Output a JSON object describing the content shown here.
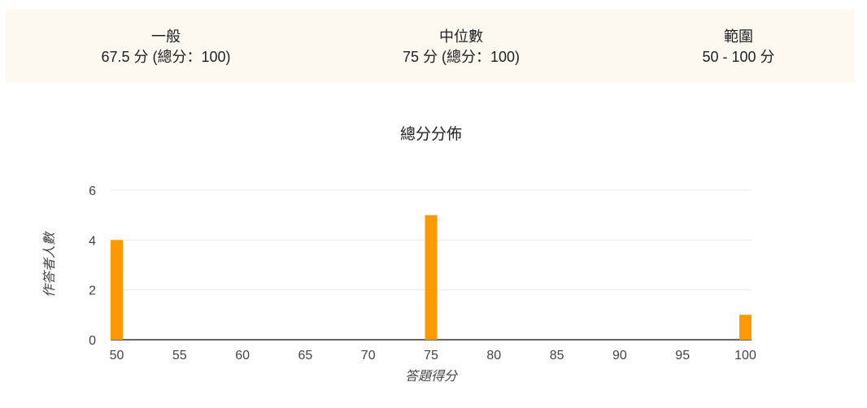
{
  "stats": {
    "average": {
      "label": "一般",
      "value": "67.5 分 (總分：100)"
    },
    "median": {
      "label": "中位數",
      "value": "75 分 (總分：100)"
    },
    "range": {
      "label": "範圍",
      "value": "50 - 100 分"
    }
  },
  "colors": {
    "bar": "#ff9900",
    "gridline": "#ebebeb",
    "baseline": "#333333",
    "panel_background": "#fef9f0"
  },
  "chart_data": {
    "type": "bar",
    "title": "總分分佈",
    "xlabel": "答題得分",
    "ylabel": "作答者人數",
    "x_ticks": [
      50,
      55,
      60,
      65,
      70,
      75,
      80,
      85,
      90,
      95,
      100
    ],
    "y_ticks": [
      0,
      2,
      4,
      6
    ],
    "xlim": [
      50,
      100
    ],
    "ylim": [
      0,
      6
    ],
    "grid": true,
    "legend": "none",
    "x": [
      50,
      75,
      100
    ],
    "values": [
      4,
      5,
      1
    ]
  }
}
